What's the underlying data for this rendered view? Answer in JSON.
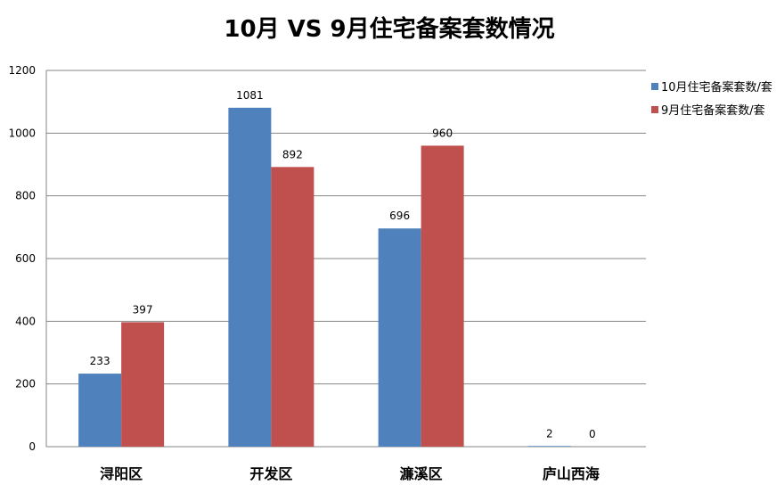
{
  "chart_data": {
    "type": "bar",
    "title": "10月 VS 9月住宅备案套数情况",
    "xlabel": "",
    "ylabel": "",
    "categories": [
      "浔阳区",
      "开发区",
      "濂溪区",
      "庐山西海"
    ],
    "series": [
      {
        "name": "10月住宅备案套数/套",
        "color": "#4F81BD",
        "values": [
          233,
          1081,
          696,
          2
        ]
      },
      {
        "name": "9月住宅备案套数/套",
        "color": "#C0504D",
        "values": [
          397,
          892,
          960,
          0
        ]
      }
    ],
    "ylim": [
      0,
      1200
    ],
    "yticks": [
      0,
      200,
      400,
      600,
      800,
      1000,
      1200
    ],
    "grid": true,
    "legend_position": "right"
  }
}
